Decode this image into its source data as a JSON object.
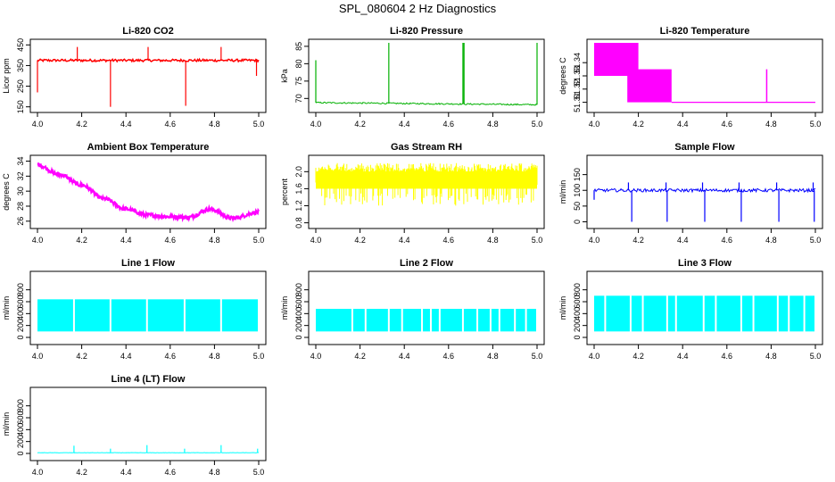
{
  "figure_title": "SPL_080604  2 Hz Diagnostics",
  "chart_data": [
    {
      "id": "p1",
      "type": "line",
      "title": "Li-820 CO2",
      "ylabel": "Licor ppm",
      "color": "#ff0000",
      "xlim": [
        4.0,
        5.0
      ],
      "ylim": [
        140,
        460
      ],
      "xticks": [
        4.0,
        4.2,
        4.4,
        4.6,
        4.8,
        5.0
      ],
      "xtick_labels": [
        "4.0",
        "4.2",
        "4.4",
        "4.6",
        "4.8",
        "5.0"
      ],
      "yticks": [
        150,
        250,
        350,
        450
      ],
      "ytick_labels": [
        "150",
        "250",
        "350",
        "450"
      ],
      "baseline": 375,
      "noise": 6,
      "pattern": "co2",
      "spikes": [
        {
          "x": 4.0,
          "y": 220
        },
        {
          "x": 4.18,
          "y": 440
        },
        {
          "x": 4.33,
          "y": 150
        },
        {
          "x": 4.5,
          "y": 440
        },
        {
          "x": 4.67,
          "y": 155
        },
        {
          "x": 4.83,
          "y": 440
        },
        {
          "x": 4.99,
          "y": 300
        }
      ]
    },
    {
      "id": "p2",
      "type": "line",
      "title": "Li-820 Pressure",
      "ylabel": "kPa",
      "color": "#00b000",
      "xlim": [
        4.0,
        5.0
      ],
      "ylim": [
        67,
        86
      ],
      "xticks": [
        4.0,
        4.2,
        4.4,
        4.6,
        4.8,
        5.0
      ],
      "xtick_labels": [
        "4.0",
        "4.2",
        "4.4",
        "4.6",
        "4.8",
        "5.0"
      ],
      "yticks": [
        70,
        75,
        80,
        85
      ],
      "ytick_labels": [
        "70",
        "75",
        "80",
        "85"
      ],
      "baseline": 68.8,
      "drift": -0.6,
      "noise": 0.2,
      "pattern": "pressure",
      "spikes": [
        {
          "x": 4.0,
          "y": 81
        },
        {
          "x": 4.33,
          "y": 86
        },
        {
          "x": 4.665,
          "y": 86
        },
        {
          "x": 4.67,
          "y": 86
        },
        {
          "x": 5.0,
          "y": 86
        }
      ]
    },
    {
      "id": "p3",
      "type": "line",
      "title": "Li-820 Temperature",
      "ylabel": "degrees C",
      "color": "#ff00ff",
      "xlim": [
        4.0,
        5.0
      ],
      "ylim": [
        51.305,
        51.355
      ],
      "xticks": [
        4.0,
        4.2,
        4.4,
        4.6,
        4.8,
        5.0
      ],
      "xtick_labels": [
        "4.0",
        "4.2",
        "4.4",
        "4.6",
        "4.8",
        "5.0"
      ],
      "yticks": [
        51.31,
        51.32,
        51.33,
        51.34
      ],
      "ytick_labels": [
        "51.31",
        "51.32",
        "51.33",
        "51.34"
      ],
      "pattern": "step",
      "bands": [
        {
          "x0": 4.0,
          "x1": 4.2,
          "y0": 51.33,
          "y1": 51.355
        },
        {
          "x0": 4.15,
          "x1": 4.35,
          "y0": 51.31,
          "y1": 51.335
        },
        {
          "x0": 4.35,
          "x1": 5.0,
          "y0": 51.31,
          "y1": 51.31
        }
      ],
      "spikes": [
        {
          "x": 4.78,
          "y": 51.335
        }
      ]
    },
    {
      "id": "p4",
      "type": "line",
      "title": "Ambient Box Temperature",
      "ylabel": "degrees C",
      "color": "#ff00ff",
      "xlim": [
        4.0,
        5.0
      ],
      "ylim": [
        25.5,
        34.3
      ],
      "xticks": [
        4.0,
        4.2,
        4.4,
        4.6,
        4.8,
        5.0
      ],
      "xtick_labels": [
        "4.0",
        "4.2",
        "4.4",
        "4.6",
        "4.8",
        "5.0"
      ],
      "yticks": [
        26,
        28,
        30,
        32,
        34
      ],
      "ytick_labels": [
        "26",
        "28",
        "30",
        "32",
        "34"
      ],
      "pattern": "curve",
      "noise": 0.25,
      "curve": [
        {
          "x": 4.0,
          "y": 33.5
        },
        {
          "x": 4.1,
          "y": 32.2
        },
        {
          "x": 4.2,
          "y": 30.8
        },
        {
          "x": 4.3,
          "y": 29.0
        },
        {
          "x": 4.4,
          "y": 27.6
        },
        {
          "x": 4.5,
          "y": 26.8
        },
        {
          "x": 4.6,
          "y": 26.6
        },
        {
          "x": 4.68,
          "y": 26.5
        },
        {
          "x": 4.78,
          "y": 27.6
        },
        {
          "x": 4.88,
          "y": 26.4
        },
        {
          "x": 5.0,
          "y": 27.2
        }
      ]
    },
    {
      "id": "p5",
      "type": "line",
      "title": "Gas Stream RH",
      "ylabel": "percent",
      "color": "#ffff00",
      "xlim": [
        4.0,
        5.0
      ],
      "ylim": [
        0.75,
        2.3
      ],
      "xticks": [
        4.0,
        4.2,
        4.4,
        4.6,
        4.8,
        5.0
      ],
      "xtick_labels": [
        "4.0",
        "4.2",
        "4.4",
        "4.6",
        "4.8",
        "5.0"
      ],
      "yticks": [
        0.8,
        1.2,
        1.6,
        2.0
      ],
      "ytick_labels": [
        "0.8",
        "1.2",
        "1.6",
        "2.0"
      ],
      "pattern": "band",
      "band_lo": 1.2,
      "band_hi": 2.2,
      "core_lo": 1.6,
      "core_hi": 2.0
    },
    {
      "id": "p6",
      "type": "line",
      "title": "Sample Flow",
      "ylabel": "ml/min",
      "color": "#0000ff",
      "xlim": [
        4.0,
        5.0
      ],
      "ylim": [
        -10,
        200
      ],
      "xticks": [
        4.0,
        4.2,
        4.4,
        4.6,
        4.8,
        5.0
      ],
      "xtick_labels": [
        "4.0",
        "4.2",
        "4.4",
        "4.6",
        "4.8",
        "5.0"
      ],
      "yticks": [
        0,
        50,
        100,
        150
      ],
      "ytick_labels": [
        "0",
        "50",
        "100",
        "150"
      ],
      "baseline": 100,
      "noise": 5,
      "pattern": "flow",
      "spikes": [
        {
          "x": 4.0,
          "y": 70
        },
        {
          "x": 4.17,
          "y": 0
        },
        {
          "x": 4.33,
          "y": 0
        },
        {
          "x": 4.5,
          "y": 0
        },
        {
          "x": 4.665,
          "y": 0
        },
        {
          "x": 4.835,
          "y": 0
        },
        {
          "x": 4.995,
          "y": 0
        }
      ],
      "upspikes": [
        {
          "x": 4.155,
          "y": 125
        },
        {
          "x": 4.325,
          "y": 125
        },
        {
          "x": 4.49,
          "y": 125
        },
        {
          "x": 4.655,
          "y": 125
        },
        {
          "x": 4.825,
          "y": 125
        },
        {
          "x": 4.99,
          "y": 125
        }
      ]
    },
    {
      "id": "p7",
      "type": "line",
      "title": "Line 1 Flow",
      "ylabel": "ml/min",
      "color": "#00ffff",
      "xlim": [
        4.0,
        5.0
      ],
      "ylim": [
        -60,
        1050
      ],
      "xticks": [
        4.0,
        4.2,
        4.4,
        4.6,
        4.8,
        5.0
      ],
      "xtick_labels": [
        "4.0",
        "4.2",
        "4.4",
        "4.6",
        "4.8",
        "5.0"
      ],
      "yticks": [
        0,
        200,
        400,
        600,
        800
      ],
      "ytick_labels": [
        "0",
        "200",
        "400",
        "600",
        "800"
      ],
      "pattern": "block",
      "block_lo": 100,
      "block_hi": 640,
      "gaps": [
        4.165,
        4.33,
        4.495,
        4.665,
        4.83
      ]
    },
    {
      "id": "p8",
      "type": "line",
      "title": "Line 2 Flow",
      "ylabel": "ml/min",
      "color": "#00ffff",
      "xlim": [
        4.0,
        5.0
      ],
      "ylim": [
        -60,
        1050
      ],
      "xticks": [
        4.0,
        4.2,
        4.4,
        4.6,
        4.8,
        5.0
      ],
      "xtick_labels": [
        "4.0",
        "4.2",
        "4.4",
        "4.6",
        "4.8",
        "5.0"
      ],
      "yticks": [
        0,
        200,
        400,
        600,
        800
      ],
      "ytick_labels": [
        "0",
        "200",
        "400",
        "600",
        "800"
      ],
      "pattern": "block",
      "block_lo": 100,
      "block_hi": 480,
      "gaps": [
        4.165,
        4.225,
        4.33,
        4.39,
        4.48,
        4.52,
        4.56,
        4.665,
        4.73,
        4.79,
        4.83,
        4.9,
        4.95
      ]
    },
    {
      "id": "p9",
      "type": "line",
      "title": "Line 3 Flow",
      "ylabel": "ml/min",
      "color": "#00ffff",
      "xlim": [
        4.0,
        5.0
      ],
      "ylim": [
        -60,
        1050
      ],
      "xticks": [
        4.0,
        4.2,
        4.4,
        4.6,
        4.8,
        5.0
      ],
      "xtick_labels": [
        "4.0",
        "4.2",
        "4.4",
        "4.6",
        "4.8",
        "5.0"
      ],
      "yticks": [
        0,
        200,
        400,
        600,
        800
      ],
      "ytick_labels": [
        "0",
        "200",
        "400",
        "600",
        "800"
      ],
      "pattern": "block",
      "block_lo": 100,
      "block_hi": 700,
      "gaps": [
        4.05,
        4.165,
        4.22,
        4.33,
        4.37,
        4.495,
        4.55,
        4.665,
        4.72,
        4.83,
        4.88,
        4.95
      ]
    },
    {
      "id": "p10",
      "type": "line",
      "title": "Line 4 (LT) Flow",
      "ylabel": "ml/min",
      "color": "#00ffff",
      "xlim": [
        4.0,
        5.0
      ],
      "ylim": [
        -60,
        1050
      ],
      "xticks": [
        4.0,
        4.2,
        4.4,
        4.6,
        4.8,
        5.0
      ],
      "xtick_labels": [
        "4.0",
        "4.2",
        "4.4",
        "4.6",
        "4.8",
        "5.0"
      ],
      "yticks": [
        0,
        200,
        400,
        600,
        800
      ],
      "ytick_labels": [
        "0",
        "200",
        "400",
        "600",
        "800"
      ],
      "baseline": 12,
      "noise": 3,
      "pattern": "flow",
      "spikes": [],
      "upspikes": [
        {
          "x": 4.165,
          "y": 130
        },
        {
          "x": 4.33,
          "y": 80
        },
        {
          "x": 4.495,
          "y": 140
        },
        {
          "x": 4.665,
          "y": 80
        },
        {
          "x": 4.83,
          "y": 140
        },
        {
          "x": 4.995,
          "y": 80
        }
      ]
    }
  ]
}
